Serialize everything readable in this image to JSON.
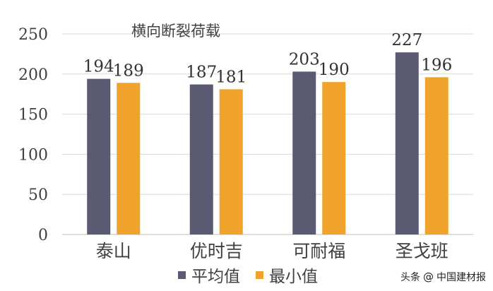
{
  "chart_data": {
    "type": "bar",
    "title": "横向断裂荷载",
    "categories": [
      "泰山",
      "优时吉",
      "可耐福",
      "圣戈班"
    ],
    "series": [
      {
        "name": "平均值",
        "values": [
          194,
          187,
          203,
          227
        ],
        "color": "#5b5a73"
      },
      {
        "name": "最小值",
        "values": [
          189,
          181,
          190,
          196
        ],
        "color": "#f0a32a"
      }
    ],
    "ylim": [
      0,
      250
    ],
    "yticks": [
      "0",
      "50",
      "100",
      "150",
      "200",
      "250"
    ],
    "xlabel": "",
    "ylabel": "",
    "grid": true,
    "legend_position": "bottom"
  },
  "watermark": {
    "prefix": "头条",
    "at": "@",
    "account": "中国建材报"
  }
}
